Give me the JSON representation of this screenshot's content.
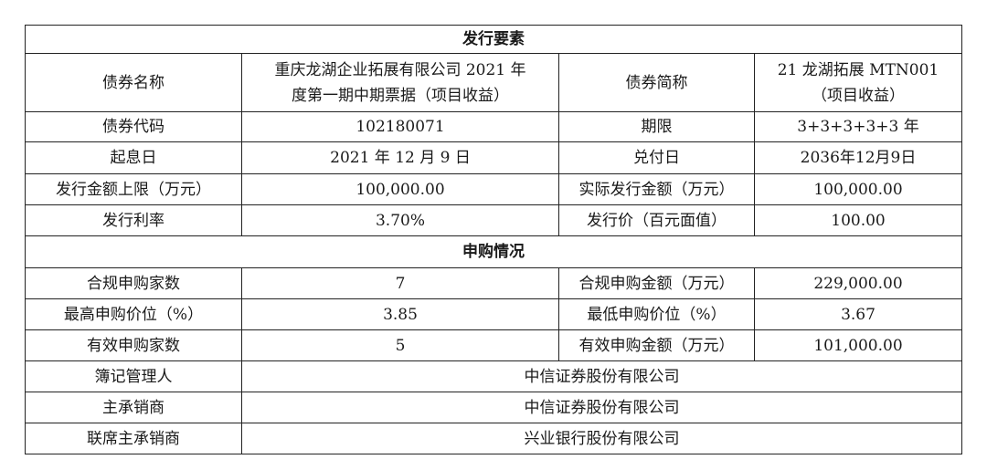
{
  "sections": {
    "issuance": "发行要素",
    "subscription": "申购情况"
  },
  "issuance": {
    "bond_name_label": "债券名称",
    "bond_name_line1": "重庆龙湖企业拓展有限公司 2021 年",
    "bond_name_line2": "度第一期中期票据（项目收益）",
    "short_name_label": "债券简称",
    "short_name_line1": "21 龙湖拓展 MTN001",
    "short_name_line2": "（项目收益）",
    "code_label": "债券代码",
    "code": "102180071",
    "term_label": "期限",
    "term": "3+3+3+3+3 年",
    "value_date_label": "起息日",
    "value_date": "2021 年 12 月 9 日",
    "maturity_label": "兑付日",
    "maturity": "2036年12月9日",
    "cap_label": "发行金额上限（万元）",
    "cap": "100,000.00",
    "actual_label": "实际发行金额（万元）",
    "actual": "100,000.00",
    "rate_label": "发行利率",
    "rate": "3.70%",
    "price_label": "发行价（百元面值）",
    "price": "100.00"
  },
  "subscription": {
    "compliant_count_label": "合规申购家数",
    "compliant_count": "7",
    "compliant_amount_label": "合规申购金额（万元）",
    "compliant_amount": "229,000.00",
    "max_price_label": "最高申购价位（%）",
    "max_price": "3.85",
    "min_price_label": "最低申购价位（%）",
    "min_price": "3.67",
    "valid_count_label": "有效申购家数",
    "valid_count": "5",
    "valid_amount_label": "有效申购金额（万元）",
    "valid_amount": "101,000.00",
    "bookrunner_label": "簿记管理人",
    "bookrunner": "中信证券股份有限公司",
    "lead_label": "主承销商",
    "lead": "中信证券股份有限公司",
    "colead_label": "联席主承销商",
    "colead": "兴业银行股份有限公司"
  }
}
